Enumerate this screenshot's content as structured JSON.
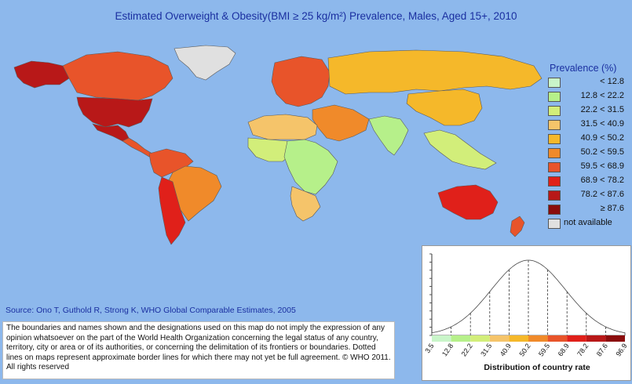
{
  "title": "Estimated Overweight & Obesity(BMI ≥ 25 kg/m²) Prevalence, Males, Aged 15+, 2010",
  "legend": {
    "title": "Prevalence (%)",
    "items": [
      {
        "label": "< 12.8",
        "color": "#c9f5c9"
      },
      {
        "label": "12.8 < 22.2",
        "color": "#b6f08a"
      },
      {
        "label": "22.2 < 31.5",
        "color": "#d2ee7a"
      },
      {
        "label": "31.5 < 40.9",
        "color": "#f5c46a"
      },
      {
        "label": "40.9 < 50.2",
        "color": "#f5b82a"
      },
      {
        "label": "50.2 < 59.5",
        "color": "#f08a2a"
      },
      {
        "label": "59.5 < 68.9",
        "color": "#e8542a"
      },
      {
        "label": "68.9 < 78.2",
        "color": "#e0201a"
      },
      {
        "label": "78.2 < 87.6",
        "color": "#b81818"
      },
      {
        "label": "≥ 87.6",
        "color": "#8a0c0c"
      }
    ],
    "not_available": {
      "label": "not available",
      "color": "#e0e0e0"
    }
  },
  "source": "Source: Ono T, Guthold R, Strong K, WHO Global Comparable Estimates, 2005",
  "disclaimer": "The boundaries and names shown and the designations used on this map do not imply the expression of any opinion whatsoever on the part of the World Health Organization concerning the legal status of any country, territory, city or area or of its authorities, or concerning the delimitation of its frontiers or boundaries. Dotted lines on maps represent approximate border lines for which there may not yet be full agreement. © WHO 2011. All rights reserved",
  "distribution": {
    "xlabel": "Distribution of country rate",
    "ticks": [
      "3.5",
      "12.8",
      "22.2",
      "31.5",
      "40.9",
      "50.2",
      "59.5",
      "68.9",
      "78.2",
      "87.6",
      "96.9"
    ],
    "bin_colors": [
      "#c9f5c9",
      "#b6f08a",
      "#d2ee7a",
      "#f5c46a",
      "#f5b82a",
      "#f08a2a",
      "#e8542a",
      "#e0201a",
      "#b81818",
      "#8a0c0c"
    ]
  },
  "regions": [
    {
      "name": "greenland",
      "color": "#e0e0e0"
    },
    {
      "name": "alaska",
      "color": "#b81818"
    },
    {
      "name": "canada",
      "color": "#e8542a"
    },
    {
      "name": "usa",
      "color": "#b81818"
    },
    {
      "name": "mexico",
      "color": "#b81818"
    },
    {
      "name": "central-america",
      "color": "#e8542a"
    },
    {
      "name": "northern-south-america",
      "color": "#e8542a"
    },
    {
      "name": "brazil",
      "color": "#f08a2a"
    },
    {
      "name": "southern-cone",
      "color": "#e0201a"
    },
    {
      "name": "europe",
      "color": "#e8542a"
    },
    {
      "name": "russia-north-asia",
      "color": "#f5b82a"
    },
    {
      "name": "china-east-asia",
      "color": "#f5b82a"
    },
    {
      "name": "middle-east",
      "color": "#f08a2a"
    },
    {
      "name": "north-africa",
      "color": "#f5c46a"
    },
    {
      "name": "west-africa",
      "color": "#d2ee7a"
    },
    {
      "name": "central-east-africa",
      "color": "#b6f08a"
    },
    {
      "name": "southern-africa",
      "color": "#f5c46a"
    },
    {
      "name": "south-asia",
      "color": "#b6f08a"
    },
    {
      "name": "southeast-asia",
      "color": "#d2ee7a"
    },
    {
      "name": "australia",
      "color": "#e0201a"
    },
    {
      "name": "new-zealand",
      "color": "#e8542a"
    }
  ]
}
